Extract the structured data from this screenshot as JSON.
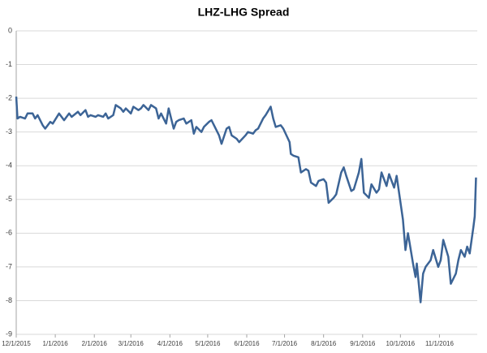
{
  "chart_data": {
    "type": "line",
    "title": "LHZ-LHG Spread",
    "color": "#3c6496",
    "grid": true,
    "xlim": [
      "12/1/2015",
      "12/1/2016"
    ],
    "xticks": [
      "12/1/2015",
      "1/1/2016",
      "2/1/2016",
      "3/1/2016",
      "4/1/2016",
      "5/1/2016",
      "6/1/2016",
      "7/1/2016",
      "8/1/2016",
      "9/1/2016",
      "10/1/2016",
      "11/1/2016"
    ],
    "ylim": [
      -9,
      0
    ],
    "yticks": [
      0,
      -1,
      -2,
      -3,
      -4,
      -5,
      -6,
      -7,
      -8,
      -9
    ],
    "x": [
      "12/1/2015",
      "12/2/2015",
      "12/4/2015",
      "12/8/2015",
      "12/10/2015",
      "12/14/2015",
      "12/16/2015",
      "12/18/2015",
      "12/22/2015",
      "12/24/2015",
      "12/28/2015",
      "12/30/2015",
      "1/4/2016",
      "1/6/2016",
      "1/8/2016",
      "1/12/2016",
      "1/14/2016",
      "1/19/2016",
      "1/21/2016",
      "1/25/2016",
      "1/27/2016",
      "1/29/2016",
      "2/2/2016",
      "2/4/2016",
      "2/8/2016",
      "2/10/2016",
      "2/12/2016",
      "2/16/2016",
      "2/18/2016",
      "2/22/2016",
      "2/24/2016",
      "2/26/2016",
      "3/1/2016",
      "3/3/2016",
      "3/7/2016",
      "3/9/2016",
      "3/11/2016",
      "3/15/2016",
      "3/17/2016",
      "3/21/2016",
      "3/23/2016",
      "3/25/2016",
      "3/29/2016",
      "3/31/2016",
      "4/4/2016",
      "4/6/2016",
      "4/8/2016",
      "4/12/2016",
      "4/14/2016",
      "4/18/2016",
      "4/20/2016",
      "4/22/2016",
      "4/26/2016",
      "4/28/2016",
      "5/2/2016",
      "5/4/2016",
      "5/6/2016",
      "5/10/2016",
      "5/12/2016",
      "5/16/2016",
      "5/18/2016",
      "5/20/2016",
      "5/24/2016",
      "5/26/2016",
      "5/31/2016",
      "6/2/2016",
      "6/6/2016",
      "6/8/2016",
      "6/10/2016",
      "6/14/2016",
      "6/16/2016",
      "6/20/2016",
      "6/22/2016",
      "6/24/2016",
      "6/28/2016",
      "6/30/2016",
      "7/5/2016",
      "7/6/2016",
      "7/8/2016",
      "7/12/2016",
      "7/14/2016",
      "7/18/2016",
      "7/20/2016",
      "7/22/2016",
      "7/26/2016",
      "7/28/2016",
      "8/1/2016",
      "8/3/2016",
      "8/5/2016",
      "8/9/2016",
      "8/11/2016",
      "8/15/2016",
      "8/17/2016",
      "8/19/2016",
      "8/23/2016",
      "8/25/2016",
      "8/29/2016",
      "8/31/2016",
      "9/2/2016",
      "9/6/2016",
      "9/8/2016",
      "9/12/2016",
      "9/14/2016",
      "9/16/2016",
      "9/20/2016",
      "9/22/2016",
      "9/26/2016",
      "9/28/2016",
      "10/3/2016",
      "10/5/2016",
      "10/7/2016",
      "10/11/2016",
      "10/13/2016",
      "10/14/2016",
      "10/17/2016",
      "10/19/2016",
      "10/21/2016",
      "10/25/2016",
      "10/27/2016",
      "10/31/2016",
      "11/2/2016",
      "11/4/2016",
      "11/8/2016",
      "11/10/2016",
      "11/14/2016",
      "11/16/2016",
      "11/18/2016",
      "11/21/2016",
      "11/23/2016",
      "11/25/2016",
      "11/28/2016",
      "11/29/2016",
      "11/30/2016"
    ],
    "values": [
      -1.95,
      -2.6,
      -2.55,
      -2.6,
      -2.45,
      -2.45,
      -2.6,
      -2.5,
      -2.8,
      -2.9,
      -2.7,
      -2.75,
      -2.45,
      -2.55,
      -2.65,
      -2.45,
      -2.55,
      -2.4,
      -2.5,
      -2.35,
      -2.55,
      -2.5,
      -2.55,
      -2.5,
      -2.55,
      -2.45,
      -2.6,
      -2.5,
      -2.2,
      -2.3,
      -2.4,
      -2.3,
      -2.45,
      -2.25,
      -2.35,
      -2.3,
      -2.2,
      -2.35,
      -2.2,
      -2.3,
      -2.6,
      -2.45,
      -2.75,
      -2.3,
      -2.9,
      -2.7,
      -2.65,
      -2.6,
      -2.75,
      -2.65,
      -3.05,
      -2.85,
      -3.0,
      -2.85,
      -2.7,
      -2.65,
      -2.8,
      -3.1,
      -3.35,
      -2.9,
      -2.85,
      -3.1,
      -3.2,
      -3.3,
      -3.1,
      -3.0,
      -3.05,
      -2.95,
      -2.9,
      -2.6,
      -2.5,
      -2.25,
      -2.6,
      -2.85,
      -2.8,
      -2.9,
      -3.3,
      -3.65,
      -3.7,
      -3.75,
      -4.2,
      -4.1,
      -4.15,
      -4.5,
      -4.6,
      -4.45,
      -4.4,
      -4.5,
      -5.1,
      -4.95,
      -4.85,
      -4.2,
      -4.05,
      -4.3,
      -4.75,
      -4.7,
      -4.2,
      -3.8,
      -4.8,
      -4.95,
      -4.55,
      -4.8,
      -4.7,
      -4.2,
      -4.6,
      -4.25,
      -4.65,
      -4.3,
      -5.6,
      -6.5,
      -6.0,
      -6.9,
      -7.3,
      -6.9,
      -8.05,
      -7.2,
      -7.0,
      -6.8,
      -6.5,
      -7.0,
      -6.8,
      -6.2,
      -6.7,
      -7.5,
      -7.2,
      -6.8,
      -6.5,
      -6.7,
      -6.4,
      -6.6,
      -5.8,
      -5.5,
      -4.35
    ]
  }
}
